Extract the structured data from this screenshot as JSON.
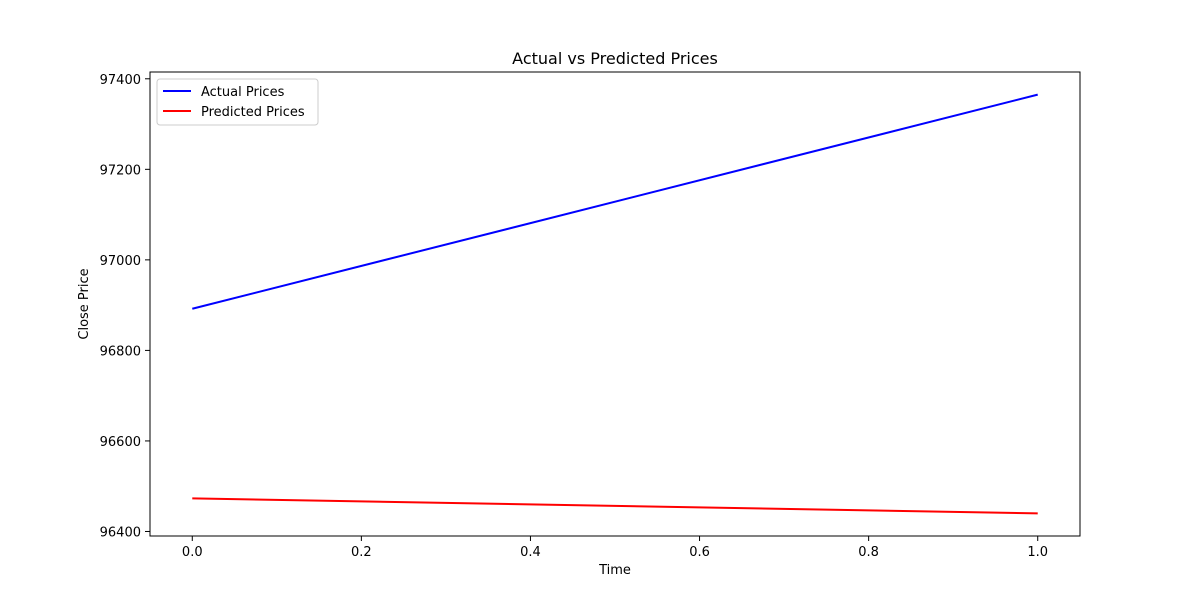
{
  "chart_data": {
    "type": "line",
    "title": "Actual vs Predicted Prices",
    "xlabel": "Time",
    "ylabel": "Close Price",
    "x": [
      0.0,
      1.0
    ],
    "xlim": [
      -0.05,
      1.05
    ],
    "ylim": [
      96390,
      97415
    ],
    "xticks": [
      0.0,
      0.2,
      0.4,
      0.6,
      0.8,
      1.0
    ],
    "xtick_labels": [
      "0.0",
      "0.2",
      "0.4",
      "0.6",
      "0.8",
      "1.0"
    ],
    "yticks": [
      96400,
      96600,
      96800,
      97000,
      97200,
      97400
    ],
    "ytick_labels": [
      "96400",
      "96600",
      "96800",
      "97000",
      "97200",
      "97400"
    ],
    "grid": false,
    "legend_position": "upper-left",
    "series": [
      {
        "name": "Actual Prices",
        "color": "#0000ff",
        "values": [
          96892,
          97365
        ]
      },
      {
        "name": "Predicted Prices",
        "color": "#ff0000",
        "values": [
          96473,
          96440
        ]
      }
    ]
  }
}
